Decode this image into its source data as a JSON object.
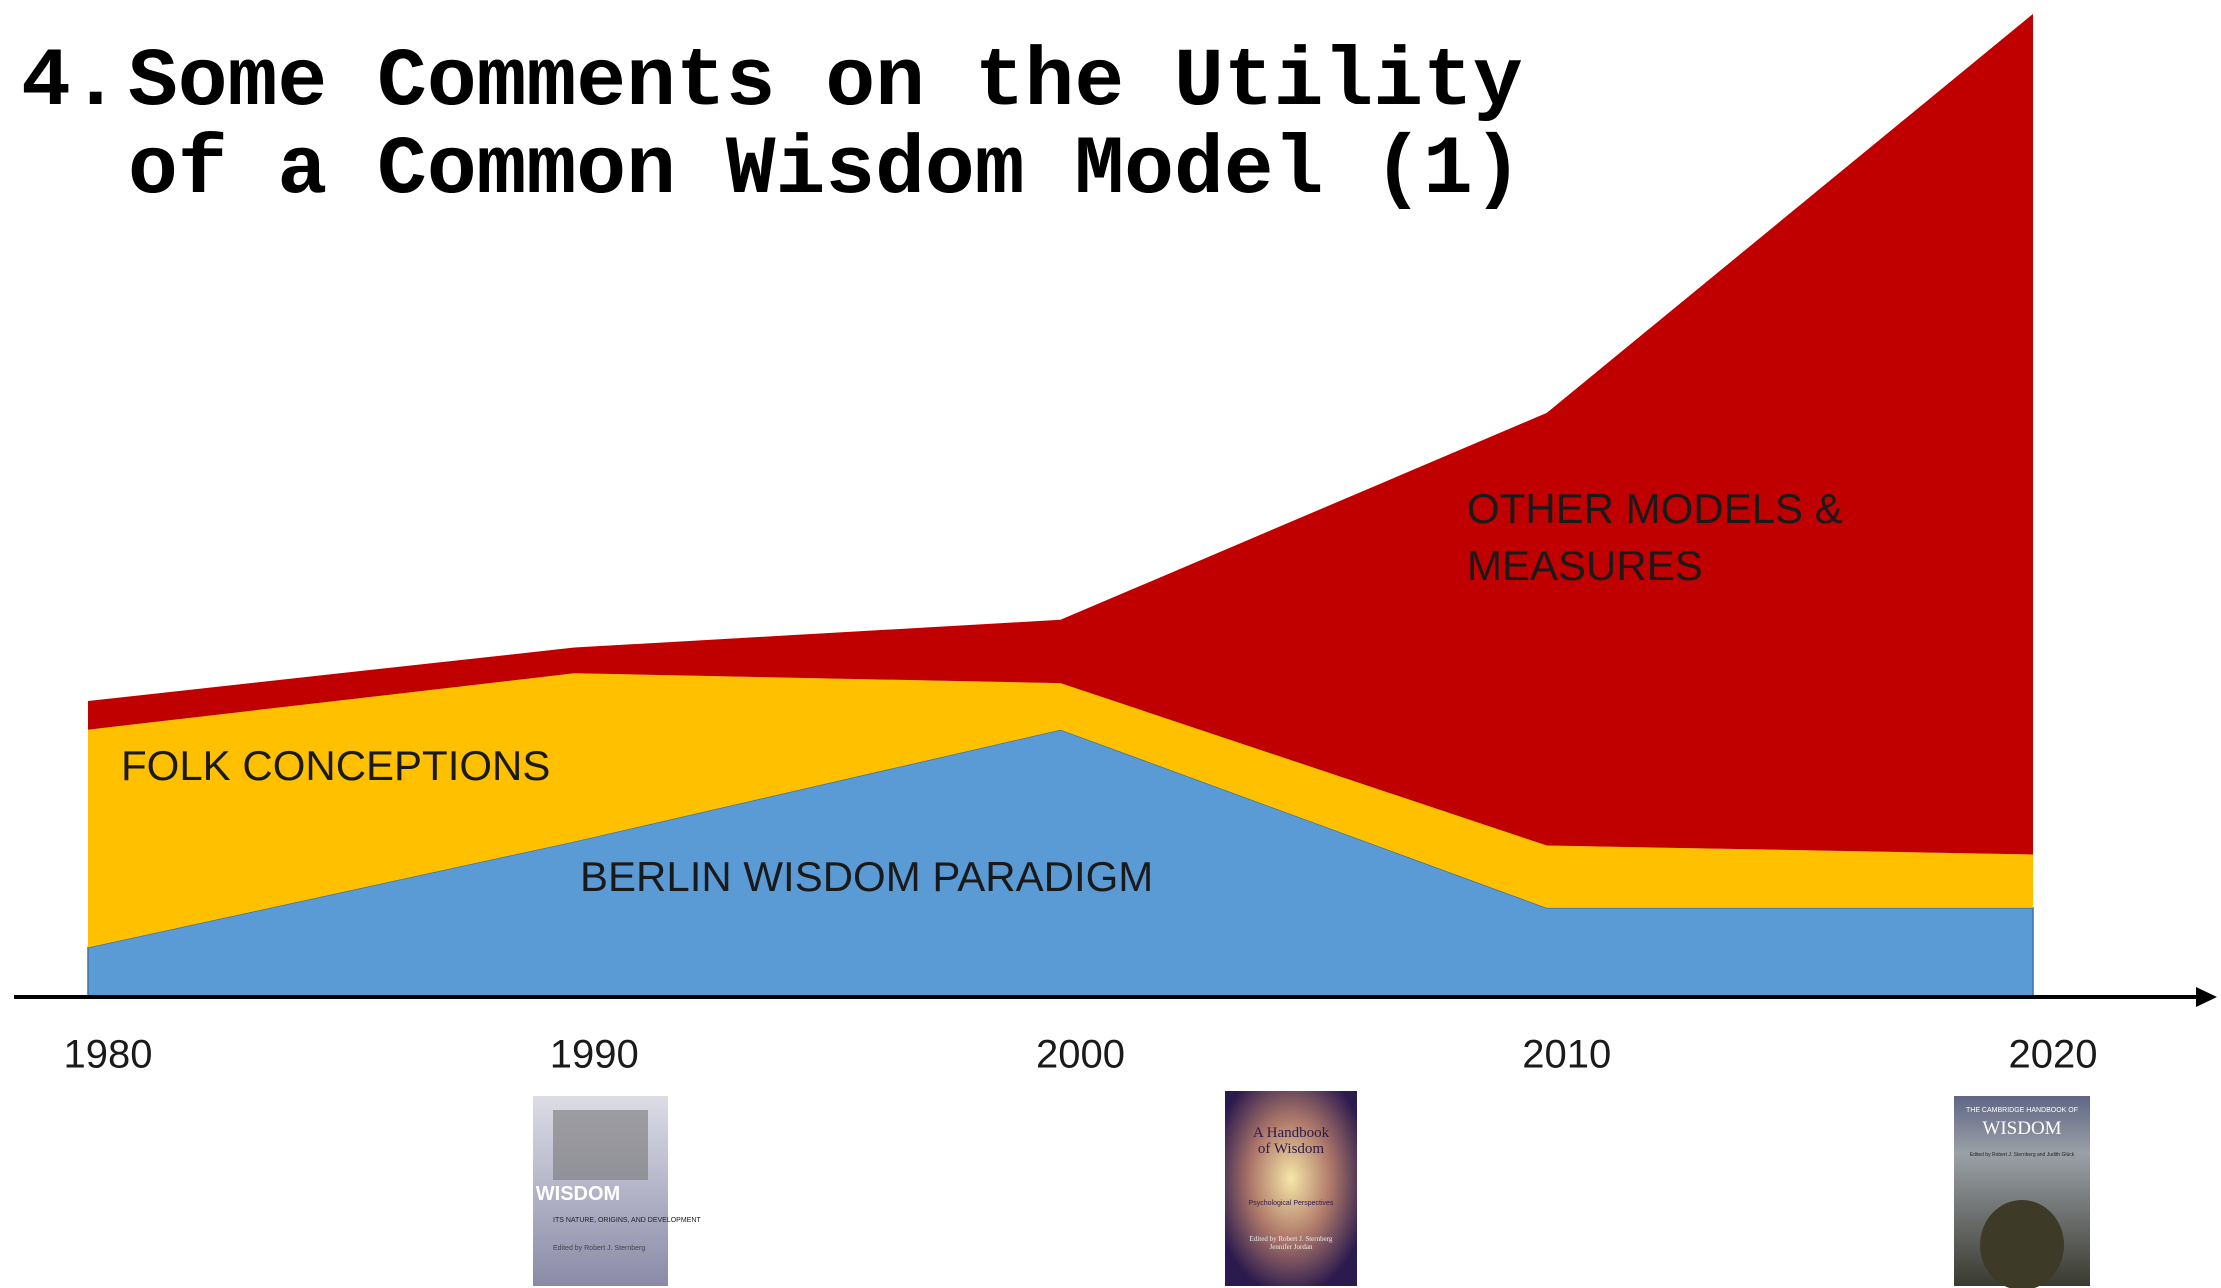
{
  "heading": {
    "number": "4.",
    "title": "Some Comments on the Utility of a Common Wisdom Model (1)"
  },
  "chart_data": {
    "type": "stacked-area",
    "x": [
      1980,
      1990,
      2000,
      2010,
      2020
    ],
    "xlim": [
      1980,
      2020
    ],
    "xticks": [
      1980,
      1990,
      2000,
      2010,
      2020
    ],
    "ylim": [
      0,
      100
    ],
    "series": [
      {
        "name": "BERLIN WISDOM PARADIGM",
        "color": "#5b9bd5",
        "values": [
          5,
          15.7,
          27,
          9,
          9
        ]
      },
      {
        "name": "FOLK CONCEPTIONS",
        "color": "#ffc000",
        "values": [
          22,
          17,
          4.7,
          6.3,
          5.4
        ]
      },
      {
        "name": "OTHER MODELS & MEASURES",
        "color": "#c00000",
        "values": [
          2.9,
          2.6,
          6.4,
          43.7,
          84.9
        ]
      }
    ]
  },
  "covers": [
    {
      "title": "WISDOM",
      "subtitle": "ITS NATURE, ORIGINS, AND DEVELOPMENT",
      "editor": "Edited by Robert J. Sternberg"
    },
    {
      "title": "A Handbook of Wisdom",
      "subtitle": "Psychological Perspectives",
      "editor": "Edited by Robert J. Sternberg Jennifer Jordan"
    },
    {
      "title": "WISDOM",
      "subtitle": "THE CAMBRIDGE HANDBOOK OF",
      "editor": "Edited by Robert J. Sternberg and Judith Glück"
    }
  ]
}
